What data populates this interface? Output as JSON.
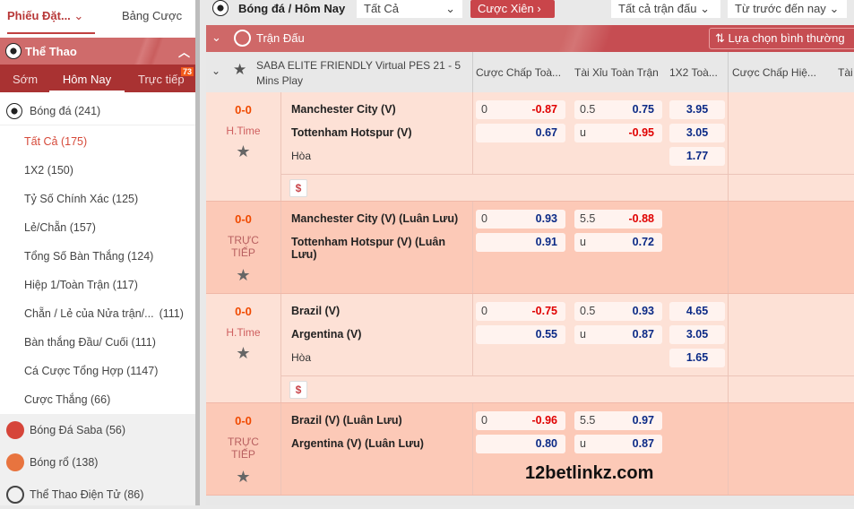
{
  "sidebar": {
    "tabs": [
      "Phiếu Đặt...",
      "Bảng Cược"
    ],
    "sport_header": "Thể Thao",
    "subtabs": [
      "Sớm",
      "Hôm Nay",
      "Trực tiếp"
    ],
    "live_badge": "73",
    "sport": "Bóng đá (241)",
    "items": [
      "Tất Cả (175)",
      "1X2 (150)",
      "Tỷ Số Chính Xác (125)",
      "Lẻ/Chẵn (157)",
      "Tổng Số Bàn Thắng (124)",
      "Hiệp 1/Toàn Trận (117)",
      "Chẵn / Lẻ của Nửa trận/...",
      "Bàn thắng Đầu/ Cuối (111)",
      "Cá Cược Tổng Hợp (1147)",
      "Cược Thắng (66)"
    ],
    "item6_count": "(111)",
    "other_sports": [
      "Bóng Đá Saba (56)",
      "Bóng rổ (138)",
      "Thể Thao Điện Tử (86)"
    ]
  },
  "toolbar": {
    "title": "Bóng đá / Hôm Nay",
    "filter": "Tất Cả",
    "parlay": "Cược Xiên",
    "matches_filter": "Tất cả trận đấu",
    "time_filter": "Từ trước đến nay"
  },
  "section": {
    "title": "Trận Đấu",
    "sort": "Lựa chọn bình thường"
  },
  "league": {
    "name": "SABA ELITE FRIENDLY Virtual PES 21 - 5 Mins Play",
    "cols": [
      "Cược Chấp Toà...",
      "Tài Xỉu Toàn Trận",
      "1X2 Toà...",
      "Cược Chấp Hiệ...",
      "Tài"
    ]
  },
  "matches": [
    {
      "score": "0-0",
      "status": "H.Time",
      "home": "Manchester City (V)",
      "away": "Tottenham Hotspur (V)",
      "draw": "Hòa",
      "hdp": "0",
      "hdp_home": "-0.87",
      "hdp_away": "0.67",
      "ou": "0.5",
      "ou_over": "0.75",
      "ou_u": "u",
      "ou_under": "-0.95",
      "x1": "3.95",
      "x2": "3.05",
      "xx": "1.77"
    },
    {
      "score": "0-0",
      "status": "TRỰC TIẾP",
      "home": "Manchester City (V) (Luân Lưu)",
      "away": "Tottenham Hotspur (V) (Luân Lưu)",
      "hdp": "0",
      "hdp_home": "0.93",
      "hdp_away": "0.91",
      "ou": "5.5",
      "ou_over": "-0.88",
      "ou_u": "u",
      "ou_under": "0.72"
    },
    {
      "score": "0-0",
      "status": "H.Time",
      "home": "Brazil (V)",
      "away": "Argentina (V)",
      "draw": "Hòa",
      "hdp": "0",
      "hdp_home": "-0.75",
      "hdp_away": "0.55",
      "ou": "0.5",
      "ou_over": "0.93",
      "ou_u": "u",
      "ou_under": "0.87",
      "x1": "4.65",
      "x2": "3.05",
      "xx": "1.65"
    },
    {
      "score": "0-0",
      "status": "TRỰC TIẾP",
      "home": "Brazil (V) (Luân Lưu)",
      "away": "Argentina (V) (Luân Lưu)",
      "hdp": "0",
      "hdp_home": "-0.96",
      "hdp_away": "0.80",
      "ou": "5.5",
      "ou_over": "0.97",
      "ou_u": "u",
      "ou_under": "0.87"
    }
  ],
  "watermark": "12betlinkz.com"
}
